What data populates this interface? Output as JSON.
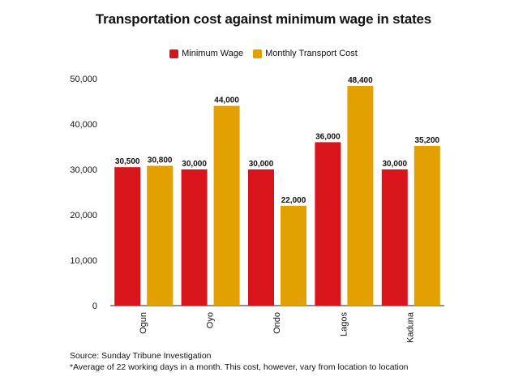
{
  "chart_data": {
    "type": "bar",
    "title": "Transportation cost against minimum wage in states",
    "categories": [
      "Ogun",
      "Oyo",
      "Ondo",
      "Lagos",
      "Kaduna"
    ],
    "series": [
      {
        "name": "Minimum Wage",
        "color": "#d7151b",
        "values": [
          30500,
          30000,
          30000,
          36000,
          30000
        ],
        "labels": [
          "30,500",
          "30,000",
          "30,000",
          "36,000",
          "30,000"
        ]
      },
      {
        "name": "Monthly Transport Cost",
        "color": "#e2a100",
        "values": [
          30800,
          44000,
          22000,
          48400,
          35200
        ],
        "labels": [
          "30,800",
          "44,000",
          "22,000",
          "48,400",
          "35,200"
        ]
      }
    ],
    "ylim": [
      0,
      50000
    ],
    "yticks": [
      0,
      10000,
      20000,
      30000,
      40000,
      50000
    ],
    "ytick_labels": [
      "0",
      "10,000",
      "20,000",
      "30,000",
      "40,000",
      "50,000"
    ],
    "xlabel": "",
    "ylabel": "",
    "legend_position": "top-center",
    "grid": false
  },
  "footer": {
    "source": "Source: Sunday Tribune Investigation",
    "note": "*Average of 22 working days in a month. This cost, however, vary from location to location"
  }
}
